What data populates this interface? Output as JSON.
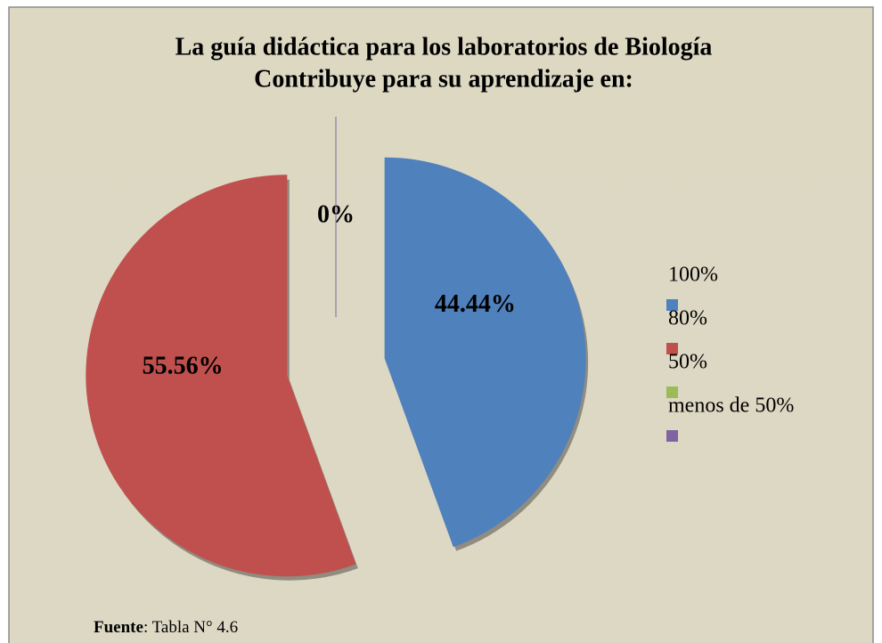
{
  "chart_data": {
    "type": "pie",
    "title": [
      "La guía didáctica para los laboratorios de Biología",
      "Contribuye para su aprendizaje en:"
    ],
    "categories": [
      "100%",
      "80%",
      "50%",
      "menos de  50%"
    ],
    "values": [
      44.44,
      55.56,
      0,
      0
    ],
    "value_labels": [
      "44.44%",
      "55.56%",
      "0%",
      null
    ],
    "colors": [
      "#4f81bd",
      "#c0504d",
      "#9bbb59",
      "#8064a2"
    ],
    "legend": "right"
  },
  "source": {
    "label": "Fuente",
    "text": ": Tabla N° 4.6"
  }
}
